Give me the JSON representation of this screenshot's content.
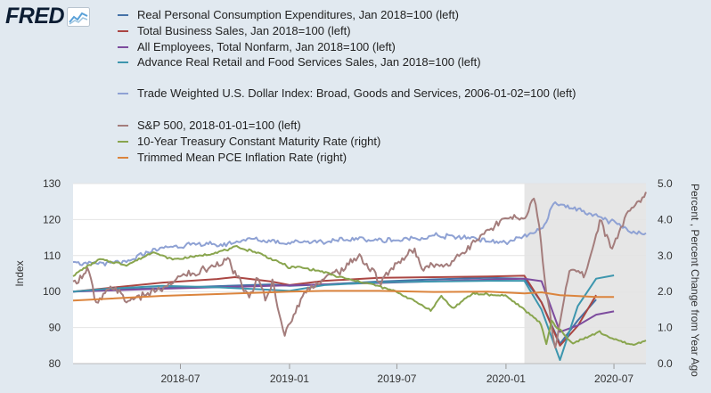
{
  "brand": {
    "logo_text": "FRED"
  },
  "chart_data": {
    "type": "line",
    "x_ticks": [
      "2018-07",
      "2019-01",
      "2019-07",
      "2020-01",
      "2020-07"
    ],
    "x_range": [
      "2018-01-01",
      "2020-08-24"
    ],
    "left_axis": {
      "label": "Index",
      "ticks": [
        80,
        90,
        100,
        110,
        120,
        130
      ],
      "range": [
        80,
        130
      ]
    },
    "right_axis": {
      "label": "Percent , Percent Change from Year Ago",
      "ticks": [
        "0.0",
        "1.0",
        "2.0",
        "3.0",
        "4.0",
        "5.0"
      ],
      "range": [
        0,
        5
      ]
    },
    "shaded_region": {
      "start": "2020-02-01",
      "end": "2020-08-24",
      "color": "#e6e6e6"
    },
    "grid": "horizontal",
    "legend_position": "top",
    "series": [
      {
        "name": "Real Personal Consumption Expenditures, Jan 2018=100 (left)",
        "color": "#4572a7",
        "axis": "left",
        "points": [
          [
            "2018-01-01",
            100
          ],
          [
            "2018-03-01",
            100.5
          ],
          [
            "2018-06-01",
            101
          ],
          [
            "2018-09-01",
            101.5
          ],
          [
            "2018-12-01",
            102
          ],
          [
            "2019-01-01",
            101.6
          ],
          [
            "2019-03-01",
            102
          ],
          [
            "2019-06-01",
            102.8
          ],
          [
            "2019-09-01",
            103.4
          ],
          [
            "2019-12-01",
            103.8
          ],
          [
            "2020-02-01",
            103.6
          ],
          [
            "2020-03-01",
            97
          ],
          [
            "2020-04-01",
            85.5
          ],
          [
            "2020-05-01",
            92
          ],
          [
            "2020-06-01",
            97.8
          ]
        ]
      },
      {
        "name": "Total Business Sales, Jan 2018=100 (left)",
        "color": "#aa4643",
        "axis": "left",
        "points": [
          [
            "2018-01-01",
            100
          ],
          [
            "2018-03-01",
            101
          ],
          [
            "2018-06-01",
            102.5
          ],
          [
            "2018-09-01",
            103.5
          ],
          [
            "2018-10-01",
            104
          ],
          [
            "2018-12-01",
            102.8
          ],
          [
            "2019-01-01",
            101.8
          ],
          [
            "2019-03-01",
            103
          ],
          [
            "2019-06-01",
            103.8
          ],
          [
            "2019-09-01",
            104
          ],
          [
            "2019-12-01",
            104.2
          ],
          [
            "2020-02-01",
            104.4
          ],
          [
            "2020-03-01",
            97
          ],
          [
            "2020-04-01",
            85
          ],
          [
            "2020-05-01",
            90.5
          ],
          [
            "2020-06-01",
            99
          ]
        ]
      },
      {
        "name": "All Employees, Total Nonfarm, Jan 2018=100 (left)",
        "color": "#7d4c9e",
        "axis": "left",
        "points": [
          [
            "2018-01-01",
            100
          ],
          [
            "2018-06-01",
            100.8
          ],
          [
            "2018-12-01",
            101.6
          ],
          [
            "2019-06-01",
            102.4
          ],
          [
            "2019-12-01",
            103.3
          ],
          [
            "2020-02-01",
            103.6
          ],
          [
            "2020-03-01",
            102.9
          ],
          [
            "2020-04-01",
            88.8
          ],
          [
            "2020-05-01",
            90.6
          ],
          [
            "2020-06-01",
            93.6
          ],
          [
            "2020-07-01",
            94.5
          ]
        ]
      },
      {
        "name": "Advance Real Retail and Food Services Sales, Jan 2018=100 (left)",
        "color": "#3d96ae",
        "axis": "left",
        "points": [
          [
            "2018-01-01",
            100
          ],
          [
            "2018-03-01",
            100.8
          ],
          [
            "2018-06-01",
            101.6
          ],
          [
            "2018-09-01",
            101.2
          ],
          [
            "2018-12-01",
            100.5
          ],
          [
            "2019-01-01",
            100.2
          ],
          [
            "2019-03-01",
            101.8
          ],
          [
            "2019-06-01",
            102.6
          ],
          [
            "2019-09-01",
            102.8
          ],
          [
            "2019-12-01",
            103
          ],
          [
            "2020-02-01",
            103
          ],
          [
            "2020-03-01",
            95
          ],
          [
            "2020-04-01",
            81
          ],
          [
            "2020-05-01",
            96
          ],
          [
            "2020-06-01",
            103.6
          ],
          [
            "2020-07-01",
            104.5
          ]
        ]
      },
      {
        "name": "Trade Weighted U.S. Dollar Index: Broad, Goods and Services, 2006-01-02=100 (left)",
        "color": "#8fa2d4",
        "axis": "left",
        "points": [
          [
            "2018-01-01",
            108.5
          ],
          [
            "2018-02-01",
            107.5
          ],
          [
            "2018-04-01",
            108
          ],
          [
            "2018-05-01",
            110.5
          ],
          [
            "2018-06-01",
            112
          ],
          [
            "2018-08-01",
            113.5
          ],
          [
            "2018-09-01",
            112.8
          ],
          [
            "2018-11-01",
            114.5
          ],
          [
            "2019-01-01",
            113.5
          ],
          [
            "2019-03-01",
            113.8
          ],
          [
            "2019-05-01",
            114.8
          ],
          [
            "2019-07-01",
            114
          ],
          [
            "2019-09-01",
            115.5
          ],
          [
            "2019-11-01",
            115
          ],
          [
            "2020-01-01",
            113.5
          ],
          [
            "2020-02-01",
            115
          ],
          [
            "2020-03-01",
            117
          ],
          [
            "2020-03-22",
            125
          ],
          [
            "2020-04-01",
            124
          ],
          [
            "2020-05-01",
            123
          ],
          [
            "2020-06-01",
            121
          ],
          [
            "2020-07-01",
            119
          ],
          [
            "2020-08-01",
            116.5
          ],
          [
            "2020-08-24",
            116
          ]
        ]
      },
      {
        "name": "S&P 500, 2018-01-01=100 (left)",
        "color": "#a47d7c",
        "axis": "left",
        "points": [
          [
            "2018-01-01",
            102
          ],
          [
            "2018-01-26",
            106.5
          ],
          [
            "2018-02-08",
            96.5
          ],
          [
            "2018-03-09",
            102
          ],
          [
            "2018-04-02",
            97.5
          ],
          [
            "2018-06-01",
            101
          ],
          [
            "2018-07-01",
            104
          ],
          [
            "2018-09-20",
            108.5
          ],
          [
            "2018-10-25",
            98.5
          ],
          [
            "2018-11-07",
            103
          ],
          [
            "2018-11-23",
            97.5
          ],
          [
            "2018-12-03",
            103
          ],
          [
            "2018-12-24",
            88
          ],
          [
            "2019-01-31",
            101
          ],
          [
            "2019-03-15",
            104.5
          ],
          [
            "2019-04-30",
            110
          ],
          [
            "2019-06-03",
            102.5
          ],
          [
            "2019-07-26",
            112
          ],
          [
            "2019-08-14",
            106.5
          ],
          [
            "2019-10-01",
            108
          ],
          [
            "2019-11-01",
            113
          ],
          [
            "2019-12-31",
            120
          ],
          [
            "2020-01-31",
            120.5
          ],
          [
            "2020-02-19",
            127
          ],
          [
            "2020-03-01",
            111
          ],
          [
            "2020-03-23",
            83.5
          ],
          [
            "2020-04-17",
            106
          ],
          [
            "2020-05-13",
            104
          ],
          [
            "2020-06-08",
            120
          ],
          [
            "2020-06-26",
            112
          ],
          [
            "2020-07-22",
            121.5
          ],
          [
            "2020-08-24",
            127
          ]
        ]
      },
      {
        "name": "10-Year Treasury Constant Maturity Rate (right)",
        "color": "#89a54e",
        "axis": "right",
        "points": [
          [
            "2018-01-01",
            2.45
          ],
          [
            "2018-02-15",
            2.9
          ],
          [
            "2018-04-01",
            2.75
          ],
          [
            "2018-05-17",
            3.1
          ],
          [
            "2018-06-15",
            2.9
          ],
          [
            "2018-08-01",
            2.98
          ],
          [
            "2018-10-05",
            3.24
          ],
          [
            "2018-11-15",
            3.05
          ],
          [
            "2018-12-31",
            2.68
          ],
          [
            "2019-01-31",
            2.65
          ],
          [
            "2019-03-29",
            2.4
          ],
          [
            "2019-05-31",
            2.14
          ],
          [
            "2019-07-01",
            2.0
          ],
          [
            "2019-08-28",
            1.47
          ],
          [
            "2019-09-13",
            1.9
          ],
          [
            "2019-10-03",
            1.53
          ],
          [
            "2019-11-07",
            1.94
          ],
          [
            "2019-12-31",
            1.9
          ],
          [
            "2020-01-31",
            1.52
          ],
          [
            "2020-02-28",
            1.13
          ],
          [
            "2020-03-09",
            0.54
          ],
          [
            "2020-03-18",
            1.18
          ],
          [
            "2020-04-21",
            0.57
          ],
          [
            "2020-06-08",
            0.88
          ],
          [
            "2020-07-01",
            0.66
          ],
          [
            "2020-08-04",
            0.52
          ],
          [
            "2020-08-24",
            0.65
          ]
        ]
      },
      {
        "name": "Trimmed Mean PCE Inflation Rate (right)",
        "color": "#db843d",
        "axis": "right",
        "points": [
          [
            "2018-01-01",
            1.75
          ],
          [
            "2018-06-01",
            1.88
          ],
          [
            "2018-12-01",
            1.98
          ],
          [
            "2019-01-01",
            2.0
          ],
          [
            "2019-03-01",
            2.02
          ],
          [
            "2019-06-01",
            2.02
          ],
          [
            "2019-09-01",
            1.99
          ],
          [
            "2019-12-01",
            2.0
          ],
          [
            "2020-02-01",
            1.95
          ],
          [
            "2020-03-01",
            1.98
          ],
          [
            "2020-04-01",
            1.9
          ],
          [
            "2020-06-01",
            1.85
          ],
          [
            "2020-07-01",
            1.85
          ]
        ]
      }
    ]
  }
}
